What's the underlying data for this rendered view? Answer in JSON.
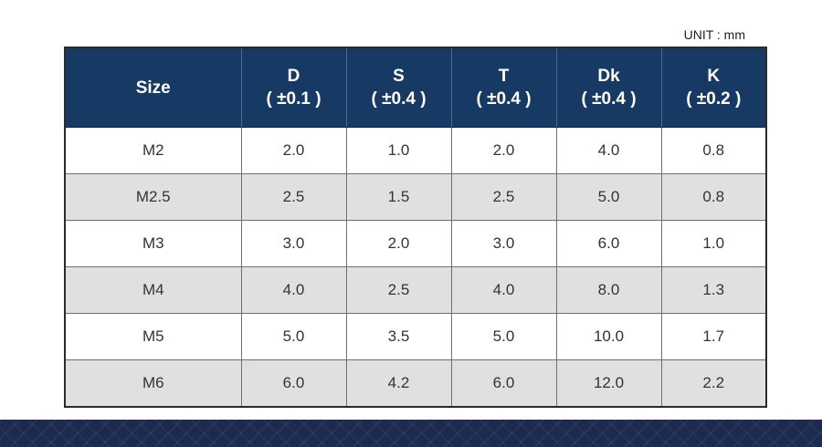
{
  "unit": "UNIT : mm",
  "table": {
    "headers": [
      {
        "name": "Size",
        "tolerance": ""
      },
      {
        "name": "D",
        "tolerance": "( ±0.1 )"
      },
      {
        "name": "S",
        "tolerance": "( ±0.4 )"
      },
      {
        "name": "T",
        "tolerance": "( ±0.4 )"
      },
      {
        "name": "Dk",
        "tolerance": "( ±0.4 )"
      },
      {
        "name": "K",
        "tolerance": "( ±0.2 )"
      }
    ],
    "rows": [
      [
        "M2",
        "2.0",
        "1.0",
        "2.0",
        "4.0",
        "0.8"
      ],
      [
        "M2.5",
        "2.5",
        "1.5",
        "2.5",
        "5.0",
        "0.8"
      ],
      [
        "M3",
        "3.0",
        "2.0",
        "3.0",
        "6.0",
        "1.0"
      ],
      [
        "M4",
        "4.0",
        "2.5",
        "4.0",
        "8.0",
        "1.3"
      ],
      [
        "M5",
        "5.0",
        "3.5",
        "5.0",
        "10.0",
        "1.7"
      ],
      [
        "M6",
        "6.0",
        "4.2",
        "6.0",
        "12.0",
        "2.2"
      ]
    ]
  },
  "colors": {
    "header_bg": "#163a64",
    "header_text": "#ffffff",
    "row_alt_bg": "#e0e0e0",
    "footer_band": "#1b2a4e"
  }
}
